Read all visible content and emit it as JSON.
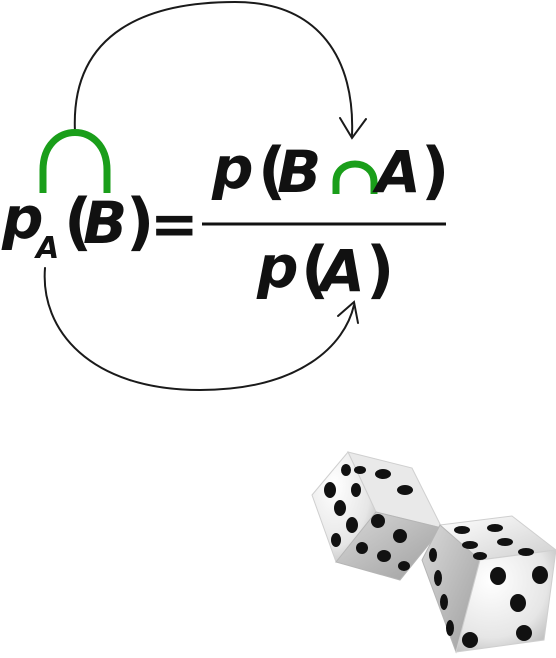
{
  "formula": {
    "lhs_p": "p",
    "lhs_sub": "A",
    "lhs_open": "(",
    "lhs_var": "B",
    "lhs_close": ")",
    "equals": "=",
    "num_p": "p",
    "num_open": "(",
    "num_var1": "B",
    "num_var2": "A",
    "num_close": ")",
    "den_p": "p",
    "den_open": "(",
    "den_var": "A",
    "den_close": ")"
  },
  "colors": {
    "highlight": "#1a9e1a",
    "ink": "#111111",
    "dice_face": "#f2f2f2",
    "dice_pip": "#111111"
  },
  "icons": {
    "intersection": "green-cap-arc",
    "dice": "pair-of-dice"
  }
}
